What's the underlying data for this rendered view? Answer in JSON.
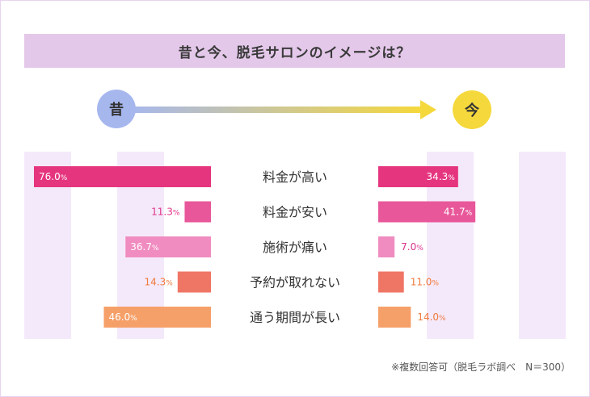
{
  "title": "昔と今、脱毛サロンのイメージは？",
  "past_label": "昔",
  "now_label": "今",
  "footnote": "※複数回答可（脱毛ラボ調べ　N＝300）",
  "chart_data": {
    "type": "bar",
    "categories": [
      "料金が高い",
      "料金が安い",
      "施術が痛い",
      "予約が取れない",
      "通う期間が長い"
    ],
    "series": [
      {
        "name": "昔",
        "values": [
          76.0,
          11.3,
          36.7,
          14.3,
          46.0
        ]
      },
      {
        "name": "今",
        "values": [
          34.3,
          41.7,
          7.0,
          11.0,
          14.0
        ]
      }
    ],
    "unit": "%",
    "colors": [
      "#e5357f",
      "#e8579a",
      "#f08cc0",
      "#ef7565",
      "#f6a069"
    ],
    "label_colors": [
      "#e5357f",
      "#e0358a",
      "#d8308c",
      "#f07a3c",
      "#f07a3c"
    ]
  }
}
